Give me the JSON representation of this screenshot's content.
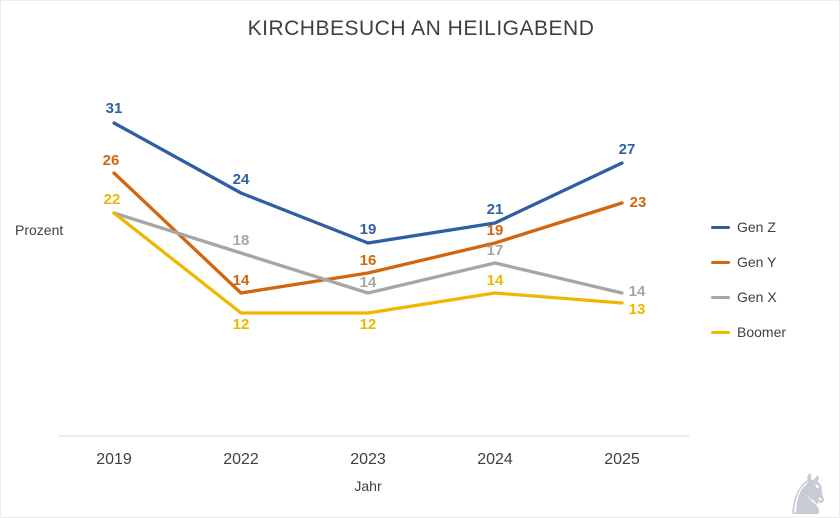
{
  "chart_data": {
    "type": "line",
    "title": "KIRCHBESUCH AN HEILIGABEND",
    "xlabel": "Jahr",
    "ylabel": "Prozent",
    "categories": [
      "2019",
      "2022",
      "2023",
      "2024",
      "2025"
    ],
    "series": [
      {
        "name": "Gen Z",
        "color": "#2E5FA3",
        "values": [
          31,
          24,
          19,
          21,
          27
        ],
        "label_visible": [
          true,
          true,
          true,
          true,
          true
        ]
      },
      {
        "name": "Gen Y",
        "color": "#D2660E",
        "values": [
          26,
          14,
          16,
          19,
          23
        ],
        "label_visible": [
          true,
          true,
          true,
          true,
          true
        ]
      },
      {
        "name": "Gen X",
        "color": "#A6A6A6",
        "values": [
          22,
          18,
          14,
          17,
          14
        ],
        "label_visible": [
          false,
          true,
          true,
          true,
          true
        ]
      },
      {
        "name": "Boomer",
        "color": "#EFB700",
        "values": [
          22,
          12,
          12,
          14,
          13
        ],
        "label_visible": [
          true,
          true,
          true,
          true,
          true
        ]
      }
    ],
    "data_labels": true,
    "legend_position": "right",
    "grid": false,
    "axis_line_color": "#d9d9d9",
    "text_color": "#404040"
  },
  "watermark": {
    "name": "horse-rider-logo",
    "glyph": "♞"
  }
}
